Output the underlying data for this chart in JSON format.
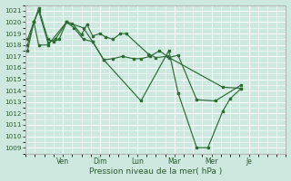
{
  "xlabel": "Pression niveau de la mer( hPa )",
  "background_color": "#cce8df",
  "grid_color": "#ffffff",
  "line_color": "#2d6a35",
  "ylim": [
    1008.5,
    1021.5
  ],
  "yticks": [
    1009,
    1010,
    1011,
    1012,
    1013,
    1014,
    1015,
    1016,
    1017,
    1018,
    1019,
    1020,
    1021
  ],
  "xlim": [
    0,
    7.0
  ],
  "x_tick_labels": [
    "Ven",
    "Dim",
    "Lun",
    "Mar",
    "Mer",
    "Je"
  ],
  "x_tick_positions": [
    1.0,
    2.0,
    3.0,
    4.0,
    5.0,
    6.0
  ],
  "series1_x": [
    0.05,
    0.22,
    0.35,
    0.6,
    0.75,
    0.9,
    1.1,
    1.25,
    1.5,
    1.65,
    1.8,
    2.0,
    2.15,
    2.35,
    2.55,
    2.7,
    3.3,
    3.5,
    3.8,
    5.3,
    5.8
  ],
  "series1_y": [
    1017.5,
    1020.0,
    1021.2,
    1018.5,
    1018.3,
    1018.5,
    1020.0,
    1019.9,
    1018.9,
    1019.8,
    1018.8,
    1019.0,
    1018.7,
    1018.5,
    1019.0,
    1019.0,
    1017.2,
    1016.9,
    1017.0,
    1014.3,
    1014.2
  ],
  "series2_x": [
    0.05,
    0.22,
    0.35,
    0.6,
    0.8,
    1.1,
    1.3,
    1.55,
    1.8,
    2.1,
    2.35,
    2.6,
    2.9,
    3.1,
    3.35,
    3.6,
    3.85,
    4.1,
    4.6,
    5.1,
    5.8
  ],
  "series2_y": [
    1018.0,
    1020.0,
    1021.0,
    1018.2,
    1018.5,
    1020.0,
    1019.5,
    1018.5,
    1018.3,
    1016.7,
    1016.8,
    1017.0,
    1016.8,
    1016.8,
    1017.0,
    1017.5,
    1016.9,
    1017.1,
    1013.2,
    1013.1,
    1014.5
  ],
  "series3_x": [
    0.05,
    0.22,
    0.35,
    0.6,
    1.1,
    1.55,
    1.8,
    2.1,
    3.1,
    3.85,
    4.1,
    4.6,
    4.9,
    5.3,
    5.5,
    5.8
  ],
  "series3_y": [
    1018.5,
    1020.0,
    1018.0,
    1018.0,
    1020.0,
    1019.5,
    1018.3,
    1016.7,
    1013.1,
    1017.5,
    1013.8,
    1009.0,
    1009.0,
    1012.2,
    1013.3,
    1014.2
  ]
}
